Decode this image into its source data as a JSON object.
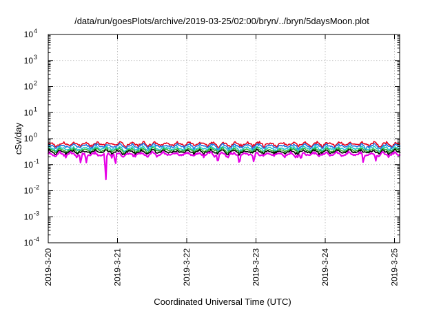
{
  "chart_data": {
    "type": "line",
    "title": "/data/run/goesPlots/archive/2019-03-25/02:00/bryn/../bryn/5daysMoon.plot",
    "xlabel": "Coordinated Universal Time (UTC)",
    "ylabel": "cSv/day",
    "y_scale": "log",
    "ylim": [
      0.0001,
      10000
    ],
    "y_ticks": [
      {
        "base": "10",
        "exp": "-4",
        "value": 0.0001
      },
      {
        "base": "10",
        "exp": "-3",
        "value": 0.001
      },
      {
        "base": "10",
        "exp": "-2",
        "value": 0.01
      },
      {
        "base": "10",
        "exp": "-1",
        "value": 0.1
      },
      {
        "base": "10",
        "exp": "0",
        "value": 1
      },
      {
        "base": "10",
        "exp": "1",
        "value": 10
      },
      {
        "base": "10",
        "exp": "2",
        "value": 100
      },
      {
        "base": "10",
        "exp": "3",
        "value": 1000
      },
      {
        "base": "10",
        "exp": "4",
        "value": 10000
      }
    ],
    "xlim": [
      "2019-03-20",
      "2019-03-25 02:00"
    ],
    "x_ticks": [
      "2019-3-20",
      "2019-3-21",
      "2019-3-22",
      "2019-3-23",
      "2019-3-24",
      "2019-3-25"
    ],
    "grid": true,
    "series": [
      {
        "color": "#e8001c",
        "level": 0.62,
        "dips": []
      },
      {
        "color": "#1f77e0",
        "level": 0.52,
        "dips": [
          [
            4.58,
            0.33
          ]
        ]
      },
      {
        "color": "#1fc8c8",
        "level": 0.42,
        "dips": []
      },
      {
        "color": "#32b432",
        "level": 0.36,
        "dips": []
      },
      {
        "color": "#000000",
        "level": 0.31,
        "dips": []
      },
      {
        "color": "#e600e6",
        "level": 0.25,
        "dips": [
          [
            0.47,
            0.11
          ],
          [
            0.55,
            0.12
          ],
          [
            0.83,
            0.023
          ],
          [
            0.97,
            0.1
          ],
          [
            2.45,
            0.12
          ],
          [
            2.76,
            0.11
          ],
          [
            2.97,
            0.12
          ],
          [
            3.65,
            0.16
          ],
          [
            4.55,
            0.12
          ],
          [
            4.73,
            0.14
          ]
        ]
      }
    ]
  }
}
